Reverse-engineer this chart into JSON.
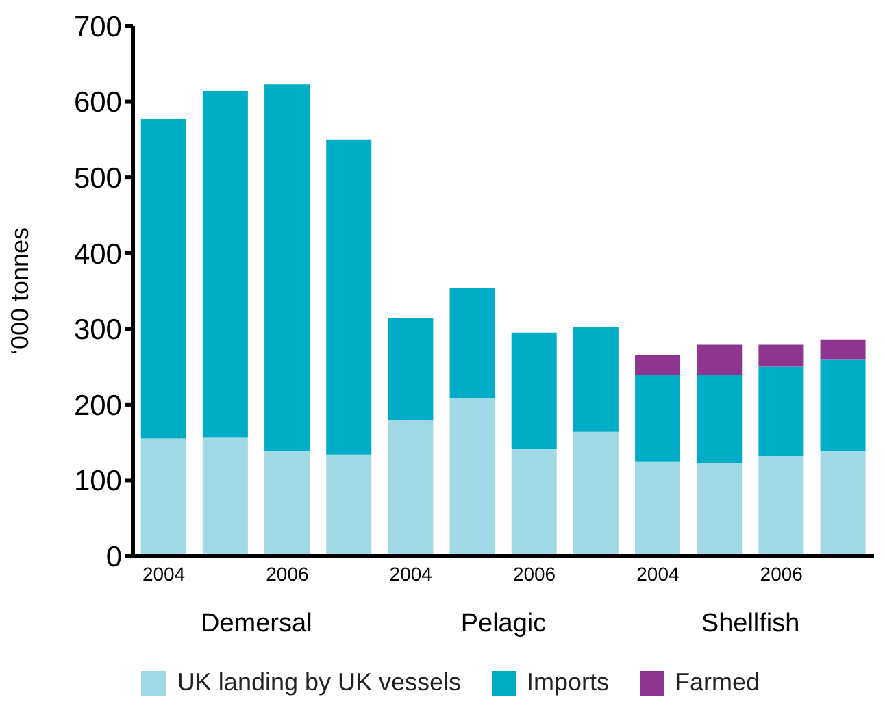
{
  "chart_data": {
    "type": "bar",
    "stacked": true,
    "ylabel": "‘000 tonnes",
    "categories": [
      "2004",
      null,
      "2006",
      null,
      "2004",
      null,
      "2006",
      null,
      "2004",
      null,
      "2006",
      null
    ],
    "series": [
      {
        "name": "UK landing by UK vessels",
        "color": "#a0d9e5",
        "values": [
          155,
          157,
          139,
          134,
          179,
          209,
          141,
          164,
          125,
          123,
          132,
          139
        ]
      },
      {
        "name": "Imports",
        "color": "#00adc7",
        "values": [
          422,
          457,
          484,
          416,
          135,
          145,
          154,
          138,
          114,
          116,
          118,
          120
        ]
      },
      {
        "name": "Farmed",
        "color": "#8e358f",
        "values": [
          null,
          null,
          null,
          null,
          null,
          null,
          null,
          null,
          27,
          40,
          29,
          27
        ]
      }
    ],
    "annotations": [
      "Demersal",
      "Pelagic",
      "Shellfish"
    ],
    "ylim": [
      0,
      700
    ],
    "yticks": [
      0,
      100,
      200,
      300,
      400,
      500,
      600,
      700
    ],
    "grid": false,
    "legend": "bottom"
  }
}
